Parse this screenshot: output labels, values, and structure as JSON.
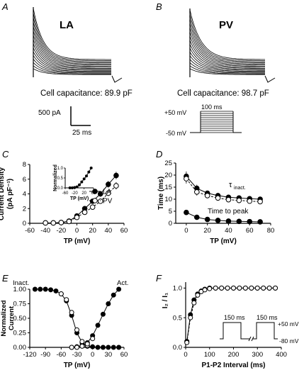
{
  "panels": {
    "A": {
      "letter": "A",
      "cell_label": "LA",
      "capacitance_text": "Cell capacitance: 89.9 pF",
      "scale_current": "500 pA",
      "scale_time": "25 ms"
    },
    "B": {
      "letter": "B",
      "cell_label": "PV",
      "capacitance_text": "Cell capacitance: 98.7 pF",
      "protocol_duration": "100 ms",
      "protocol_top": "+50 mV",
      "protocol_bottom": "-50 mV"
    },
    "C": {
      "letter": "C"
    },
    "D": {
      "letter": "D"
    },
    "E": {
      "letter": "E"
    },
    "F": {
      "letter": "F"
    }
  },
  "chart_data": [
    {
      "id": "C",
      "type": "line",
      "ylabel": "Current Density (pA pF⁻¹)",
      "xlabel": "TP (mV)",
      "xlim": [
        -60,
        60
      ],
      "ylim": [
        0,
        8
      ],
      "xticks": [
        -60,
        -40,
        -20,
        0,
        20,
        40,
        60
      ],
      "yticks": [
        0,
        2,
        4,
        6,
        8
      ],
      "x": [
        -40,
        -30,
        -20,
        -10,
        0,
        10,
        20,
        30,
        40,
        50
      ],
      "series": [
        {
          "name": "LA",
          "marker": "filled",
          "values": [
            0.05,
            0.05,
            0.1,
            0.3,
            1.0,
            2.0,
            3.0,
            4.0,
            5.3,
            6.5
          ],
          "errors": [
            0.1,
            0.1,
            0.1,
            0.15,
            0.2,
            0.3,
            0.35,
            0.4,
            0.45,
            0.5
          ]
        },
        {
          "name": "PV",
          "marker": "open",
          "values": [
            0.05,
            0.05,
            0.1,
            0.25,
            0.8,
            1.5,
            2.2,
            3.0,
            4.1,
            5.1
          ],
          "errors": [
            0.1,
            0.1,
            0.1,
            0.15,
            0.2,
            0.25,
            0.3,
            0.35,
            0.4,
            0.5
          ]
        }
      ],
      "legend": [
        {
          "label": "LA",
          "marker": "filled"
        },
        {
          "label": "PV",
          "marker": "open"
        }
      ],
      "inset": {
        "ylabel": "Normalized",
        "xlabel": "TP (mV)",
        "xlim": [
          -60,
          60
        ],
        "ylim": [
          0,
          1
        ],
        "xticks": [
          -60,
          -20,
          20,
          60
        ],
        "yticks": [
          0.0,
          0.5,
          1.0
        ],
        "x": [
          -40,
          -30,
          -20,
          -10,
          0,
          10,
          20,
          30,
          40,
          50
        ],
        "values": [
          0.0,
          0.0,
          0.02,
          0.05,
          0.15,
          0.3,
          0.45,
          0.6,
          0.8,
          1.0
        ]
      }
    },
    {
      "id": "D",
      "type": "line",
      "ylabel": "Time (ms)",
      "xlabel": "TP (mV)",
      "xlim": [
        -10,
        80
      ],
      "ylim": [
        0,
        25
      ],
      "xticks": [
        0,
        20,
        40,
        60,
        80
      ],
      "yticks": [
        0,
        5,
        10,
        15,
        20,
        25
      ],
      "x": [
        0,
        10,
        20,
        30,
        40,
        50,
        60,
        70
      ],
      "series": [
        {
          "name": "",
          "marker": "filled",
          "values": [
            19.5,
            14.5,
            12.5,
            11.5,
            10.8,
            10.5,
            10.2,
            10.0
          ],
          "errors": [
            2.0,
            1.5,
            1.0,
            0.8,
            0.7,
            0.7,
            0.6,
            0.6
          ]
        },
        {
          "name": "",
          "marker": "open",
          "values": [
            18.5,
            13.0,
            11.5,
            10.5,
            9.8,
            9.5,
            9.2,
            9.0
          ],
          "errors": [
            2.0,
            1.5,
            1.0,
            0.8,
            0.7,
            0.7,
            0.6,
            0.6
          ]
        },
        {
          "name": "",
          "marker": "filled",
          "values": [
            4.5,
            2.5,
            1.6,
            1.2,
            0.9,
            0.8,
            0.7,
            0.6
          ],
          "errors": [
            0.3,
            0.2,
            0.2,
            0.1,
            0.1,
            0.1,
            0.1,
            0.1
          ]
        }
      ],
      "annotations": [
        "τ",
        "inact.",
        "Time to peak"
      ]
    },
    {
      "id": "E",
      "type": "line",
      "ylabel": "Normalized Current",
      "xlabel": "TP (mV)",
      "xlim": [
        -120,
        60
      ],
      "ylim": [
        0,
        1
      ],
      "xticks": [
        -120,
        -90,
        -60,
        -30,
        0,
        30,
        60
      ],
      "yticks": [
        0.0,
        0.25,
        0.5,
        0.75,
        1.0
      ],
      "series": [
        {
          "name": "Inact.",
          "marker": "filled",
          "x": [
            -110,
            -100,
            -90,
            -80,
            -70,
            -60,
            -50,
            -40,
            -30,
            -20,
            -10,
            0,
            10,
            20,
            30,
            40,
            50
          ],
          "values": [
            1.0,
            1.0,
            1.0,
            0.99,
            0.97,
            0.92,
            0.8,
            0.55,
            0.25,
            0.08,
            0.02,
            0.01,
            0.0,
            0.0,
            0.0,
            0.0,
            0.0
          ]
        },
        {
          "name": "Act.",
          "marker": "filled",
          "x": [
            -40,
            -30,
            -20,
            -10,
            0,
            10,
            20,
            30,
            40,
            50
          ],
          "values": [
            0.0,
            0.01,
            0.03,
            0.08,
            0.2,
            0.38,
            0.57,
            0.75,
            0.9,
            1.0
          ]
        },
        {
          "name": "",
          "marker": "open",
          "x": [
            -60,
            -50,
            -40,
            -30,
            -20,
            -10
          ],
          "values": [
            0.92,
            0.82,
            0.6,
            0.3,
            0.1,
            0.03
          ]
        },
        {
          "name": "",
          "marker": "open",
          "x": [
            -40,
            -30,
            -20,
            -10,
            0
          ],
          "values": [
            0.0,
            0.0,
            0.02,
            0.06,
            0.15
          ]
        }
      ],
      "annotations": [
        "Inact.",
        "Act."
      ]
    },
    {
      "id": "F",
      "type": "line",
      "ylabel": "I₂ / I₁",
      "xlabel": "P1-P2 Interval (ms)",
      "xlim": [
        0,
        400
      ],
      "ylim": [
        0,
        1.1
      ],
      "xticks": [
        0,
        100,
        200,
        300,
        400
      ],
      "yticks": [
        0.0,
        0.5,
        1.0
      ],
      "series": [
        {
          "name": "",
          "marker": "filled",
          "x": [
            5,
            20,
            35,
            50,
            65,
            80,
            100,
            125,
            150,
            175,
            200,
            225,
            250,
            275,
            300,
            325,
            350,
            375
          ],
          "values": [
            0.1,
            0.55,
            0.8,
            0.9,
            0.95,
            0.98,
            1.0,
            1.0,
            1.0,
            1.0,
            1.0,
            1.0,
            1.0,
            1.0,
            1.0,
            1.0,
            1.0,
            1.0
          ]
        },
        {
          "name": "",
          "marker": "open",
          "x": [
            5,
            20,
            35,
            50,
            65,
            80,
            100,
            125,
            150,
            175,
            200,
            225,
            250,
            275,
            300,
            325,
            350,
            375
          ],
          "values": [
            0.08,
            0.5,
            0.75,
            0.88,
            0.94,
            0.97,
            0.99,
            1.0,
            1.0,
            1.0,
            1.0,
            1.0,
            1.0,
            1.0,
            1.0,
            1.0,
            1.0,
            1.0
          ]
        }
      ],
      "protocol": {
        "pulse1": "150 ms",
        "pulse2": "150 ms",
        "top": "+50 mV",
        "bottom": "-80 mV"
      }
    }
  ]
}
